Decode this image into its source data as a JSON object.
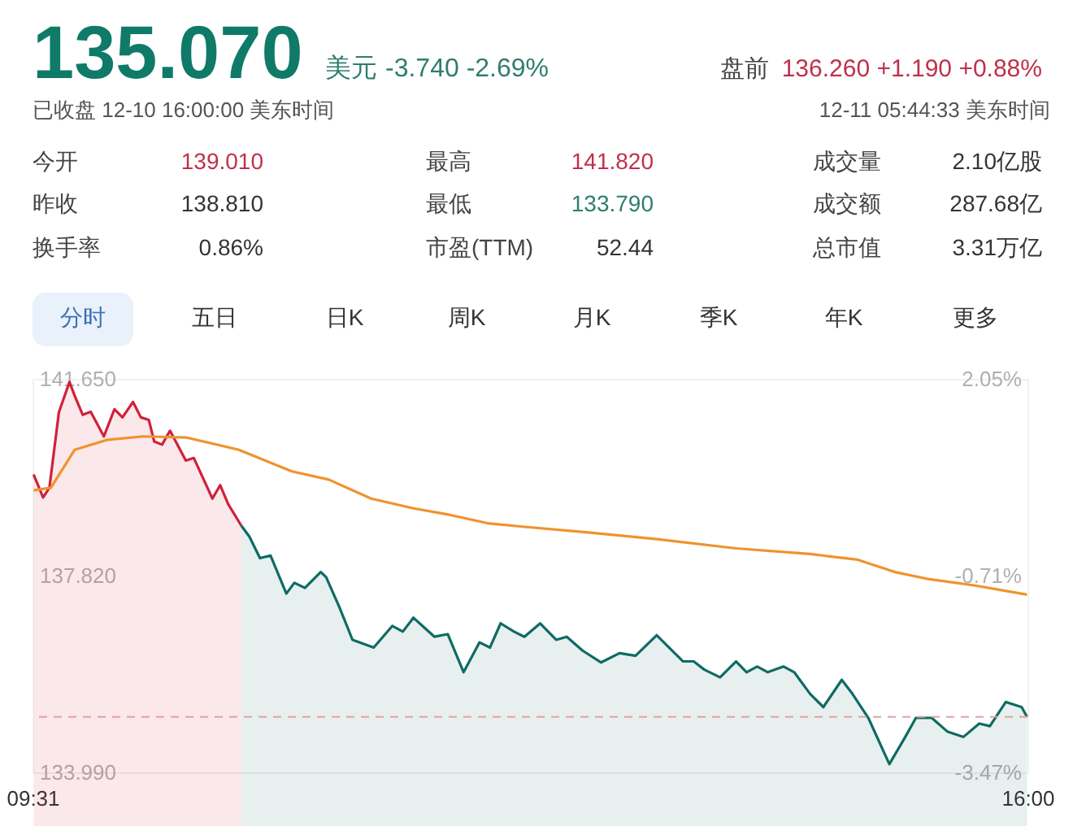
{
  "chart_data": {
    "type": "area",
    "title": "135.070",
    "annotations": [
      "美元",
      "-3.740 -2.69%",
      "盘前",
      "136.260 +1.190 +0.88%",
      "已收盘 12-10 16:00:00 美东时间",
      "12-11 05:44:33 美东时间",
      "今开",
      "139.010",
      "最高",
      "141.820",
      "成交量",
      "2.10亿股",
      "昨收",
      "138.810",
      "最低",
      "133.790",
      "成交额",
      "287.68亿",
      "换手率",
      "0.86%",
      "市盈(TTM)",
      "52.44",
      "总市值",
      "3.31万亿",
      "分时",
      "五日",
      "日K",
      "周K",
      "月K",
      "季K",
      "年K",
      "更多"
    ],
    "xlim": [
      9.517,
      16
    ],
    "xticks": [
      {
        "value": 9.517,
        "label": "09:31"
      },
      {
        "value": 16,
        "label": "16:00"
      }
    ],
    "ylim": [
      133.99,
      141.65
    ],
    "yticks": [
      {
        "value": 133.99,
        "label": "133.990"
      },
      {
        "value": 137.82,
        "label": "137.820"
      },
      {
        "value": 141.65,
        "label": "141.650"
      }
    ],
    "y2lim": [
      -3.47,
      2.05
    ],
    "y2ticks": [
      {
        "value": -3.47,
        "label": "-3.47%"
      },
      {
        "value": -0.71,
        "label": "-0.71%"
      },
      {
        "value": 2.05,
        "label": "2.05%"
      }
    ],
    "grid": false,
    "ref_lines": [
      {
        "axis": "y",
        "value": 135.07,
        "color": "#e8a0a0",
        "line_style": "dashed"
      }
    ],
    "series": [
      {
        "color": "#d0213a",
        "x": [
          9.524,
          9.586,
          9.627,
          9.689,
          9.758,
          9.792,
          9.844,
          9.896,
          9.982,
          10.051,
          10.103,
          10.172,
          10.223,
          10.275,
          10.31,
          10.361,
          10.413,
          10.516,
          10.568,
          10.689,
          10.74,
          10.792,
          10.878
        ],
        "values": [
          139.79,
          139.34,
          139.53,
          141.0,
          141.59,
          141.32,
          140.95,
          141.01,
          140.53,
          141.06,
          140.9,
          141.2,
          140.9,
          140.85,
          140.43,
          140.37,
          140.64,
          140.06,
          140.11,
          139.32,
          139.58,
          139.21,
          138.79
        ]
      },
      {
        "color": "#0f6b63",
        "x": [
          10.878,
          10.93,
          10.999,
          11.068,
          11.171,
          11.223,
          11.292,
          11.395,
          11.43,
          11.516,
          11.602,
          11.74,
          11.861,
          11.93,
          11.999,
          12.136,
          12.223,
          12.326,
          12.429,
          12.498,
          12.567,
          12.654,
          12.722,
          12.825,
          12.929,
          12.998,
          13.101,
          13.222,
          13.342,
          13.446,
          13.584,
          13.756,
          13.825,
          13.894,
          13.997,
          14.101,
          14.17,
          14.239,
          14.308,
          14.411,
          14.48,
          14.583,
          14.67,
          14.79,
          14.859,
          14.963,
          15.1,
          15.204,
          15.273,
          15.376,
          15.48,
          15.583,
          15.686,
          15.755,
          15.859,
          15.962,
          15.997
        ],
        "values": [
          138.79,
          138.58,
          138.16,
          138.21,
          137.47,
          137.68,
          137.58,
          137.89,
          137.79,
          137.21,
          136.57,
          136.42,
          136.84,
          136.73,
          137.0,
          136.63,
          136.68,
          135.94,
          136.52,
          136.42,
          136.89,
          136.73,
          136.63,
          136.89,
          136.57,
          136.63,
          136.36,
          136.13,
          136.31,
          136.26,
          136.66,
          136.15,
          136.15,
          135.99,
          135.84,
          136.15,
          135.94,
          136.05,
          135.94,
          136.05,
          135.94,
          135.52,
          135.26,
          135.79,
          135.52,
          135.05,
          134.15,
          134.68,
          135.05,
          135.05,
          134.78,
          134.68,
          134.94,
          134.89,
          135.36,
          135.26,
          135.07
        ]
      },
      {
        "type": "line",
        "color": "#f0922e",
        "x": [
          9.524,
          9.637,
          9.792,
          9.999,
          10.24,
          10.516,
          10.861,
          11.206,
          11.447,
          11.723,
          11.998,
          12.24,
          12.481,
          12.722,
          13.136,
          13.584,
          14.101,
          14.583,
          14.894,
          15.135,
          15.342,
          15.652,
          15.997
        ],
        "values": [
          139.48,
          139.53,
          140.27,
          140.46,
          140.53,
          140.51,
          140.27,
          139.85,
          139.69,
          139.32,
          139.13,
          139.0,
          138.84,
          138.77,
          138.66,
          138.53,
          138.35,
          138.24,
          138.13,
          137.89,
          137.76,
          137.63,
          137.45
        ]
      }
    ]
  }
}
